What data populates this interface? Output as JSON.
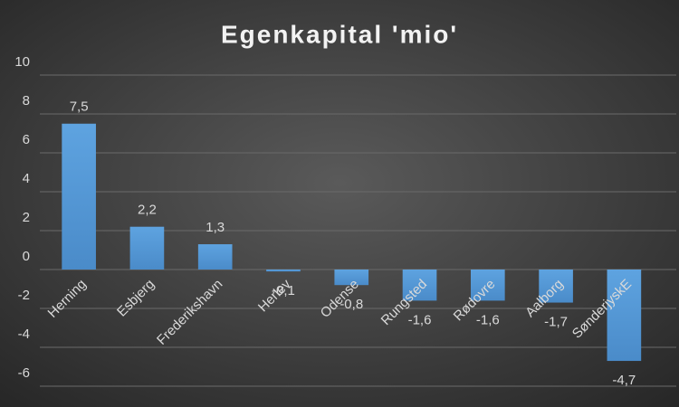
{
  "chart_data": {
    "type": "bar",
    "title": "Egenkapital 'mio'",
    "categories": [
      "Herning",
      "Esbjerg",
      "Frederikshavn",
      "Herlev",
      "Odense",
      "Rungsted",
      "Rødovre",
      "Aalborg",
      "SønderjyskE"
    ],
    "values": [
      7.5,
      2.2,
      1.3,
      -0.1,
      -0.8,
      -1.6,
      -1.6,
      -1.7,
      -4.7
    ],
    "value_labels": [
      "7,5",
      "2,2",
      "1,3",
      "-0,1",
      "-0,8",
      "-1,6",
      "-1,6",
      "-1,7",
      "-4,7"
    ],
    "color": "#5b9bd5",
    "ylim": [
      -6,
      10
    ],
    "yticks": [
      -6,
      -4,
      -2,
      0,
      2,
      4,
      6,
      8,
      10
    ],
    "grid": true
  }
}
